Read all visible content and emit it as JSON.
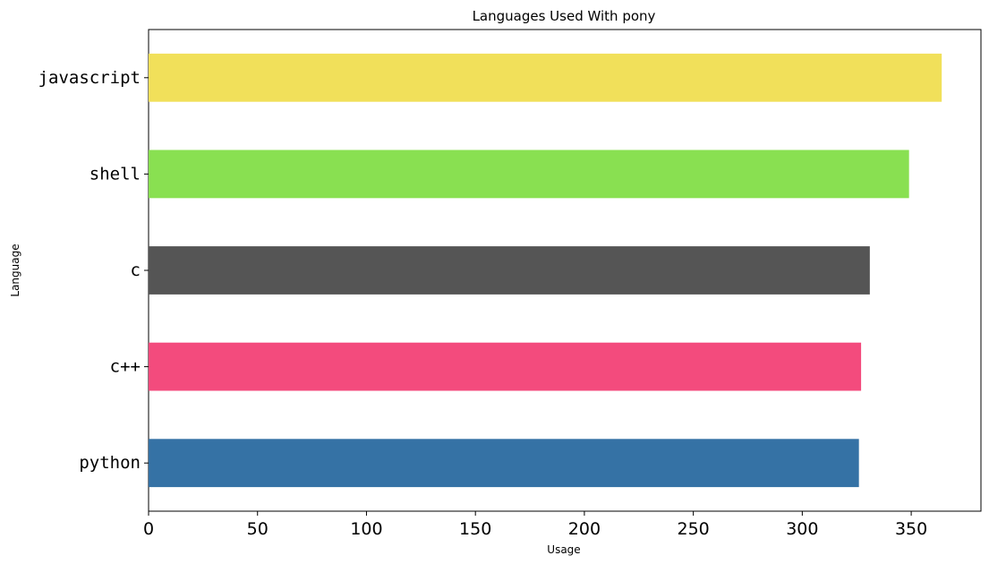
{
  "chart_data": {
    "type": "bar",
    "orientation": "horizontal",
    "title": "Languages Used With pony",
    "xlabel": "Usage",
    "ylabel": "Language",
    "categories": [
      "python",
      "c++",
      "c",
      "shell",
      "javascript"
    ],
    "values": [
      326,
      327,
      331,
      349,
      364
    ],
    "colors": [
      "#3572A5",
      "#f34b7d",
      "#555555",
      "#89e051",
      "#f1e05a"
    ],
    "xticks": [
      "0",
      "50",
      "100",
      "150",
      "200",
      "250",
      "300",
      "350"
    ],
    "xlim": [
      0,
      382
    ],
    "grid": false,
    "legend": "none"
  }
}
